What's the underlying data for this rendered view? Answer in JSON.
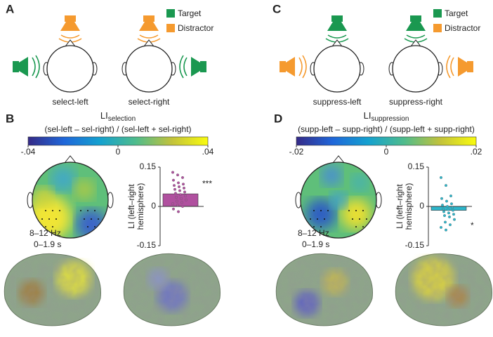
{
  "panels": [
    {
      "label": "A",
      "legend": [
        {
          "name": "Target",
          "color": "#1a9850"
        },
        {
          "name": "Distractor",
          "color": "#f59a2f"
        }
      ],
      "conditions": [
        "select-left",
        "select-right"
      ]
    },
    {
      "label": "C",
      "legend": [
        {
          "name": "Target",
          "color": "#1a9850"
        },
        {
          "name": "Distractor",
          "color": "#f59a2f"
        }
      ],
      "conditions": [
        "suppress-left",
        "suppress-right"
      ]
    },
    {
      "label": "B",
      "colorbar": {
        "title": "LI",
        "title_sub": "selection",
        "formula": "(sel-left – sel-right) / (sel-left + sel-right)",
        "lim": [
          -0.04,
          0.04
        ],
        "ticks": [
          {
            "value": -0.04,
            "label": "-.04"
          },
          0,
          {
            "value": 0.04,
            "label": ".04"
          }
        ]
      },
      "band": "8–12 Hz",
      "window": "0–1.9 s"
    },
    {
      "label": "D",
      "colorbar": {
        "title": "LI",
        "title_sub": "suppression",
        "formula": "(supp-left – supp-right) / (supp-left + supp-right)",
        "lim": [
          -0.02,
          0.02
        ],
        "ticks": [
          {
            "value": -0.02,
            "label": "-.02"
          },
          0,
          {
            "value": 0.02,
            "label": ".02"
          }
        ]
      },
      "band": "8–12 Hz",
      "window": "0–1.9 s"
    }
  ],
  "chart_data": [
    {
      "type": "bar",
      "categories": [
        null
      ],
      "values": [
        0.048
      ],
      "color": "#b0509f",
      "points": [
        0.13,
        0.12,
        0.11,
        0.1,
        0.09,
        0.085,
        0.08,
        0.075,
        0.07,
        0.065,
        0.06,
        0.055,
        0.05,
        0.045,
        0.04,
        0.035,
        0.03,
        0.025,
        0.02,
        0.015,
        0.01,
        0.005,
        0,
        -0.01,
        -0.02
      ],
      "y_label": [
        "LI (left–right",
        "hemisphere)"
      ],
      "annotation": "***",
      "ylim": [
        -0.15,
        0.15
      ],
      "yticks": [
        {
          "value": -0.15,
          "label": "-0.15"
        },
        0,
        {
          "value": 0.15,
          "label": "0.15"
        }
      ]
    },
    {
      "type": "bar",
      "categories": [
        null
      ],
      "values": [
        -0.015
      ],
      "color": "#2cb6cb",
      "points": [
        0.11,
        0.08,
        0.04,
        0.03,
        0.02,
        0.01,
        0.005,
        0,
        -0.005,
        -0.01,
        -0.012,
        -0.015,
        -0.02,
        -0.025,
        -0.03,
        -0.035,
        -0.04,
        -0.05,
        -0.06,
        -0.07,
        -0.08,
        -0.09
      ],
      "y_label": [
        "LI (left–right",
        "hemisphere)"
      ],
      "annotation": "*",
      "ylim": [
        -0.15,
        0.15
      ],
      "yticks": [
        {
          "value": -0.15,
          "label": "-0.15"
        },
        0,
        {
          "value": 0.15,
          "label": "0.15"
        }
      ]
    }
  ]
}
